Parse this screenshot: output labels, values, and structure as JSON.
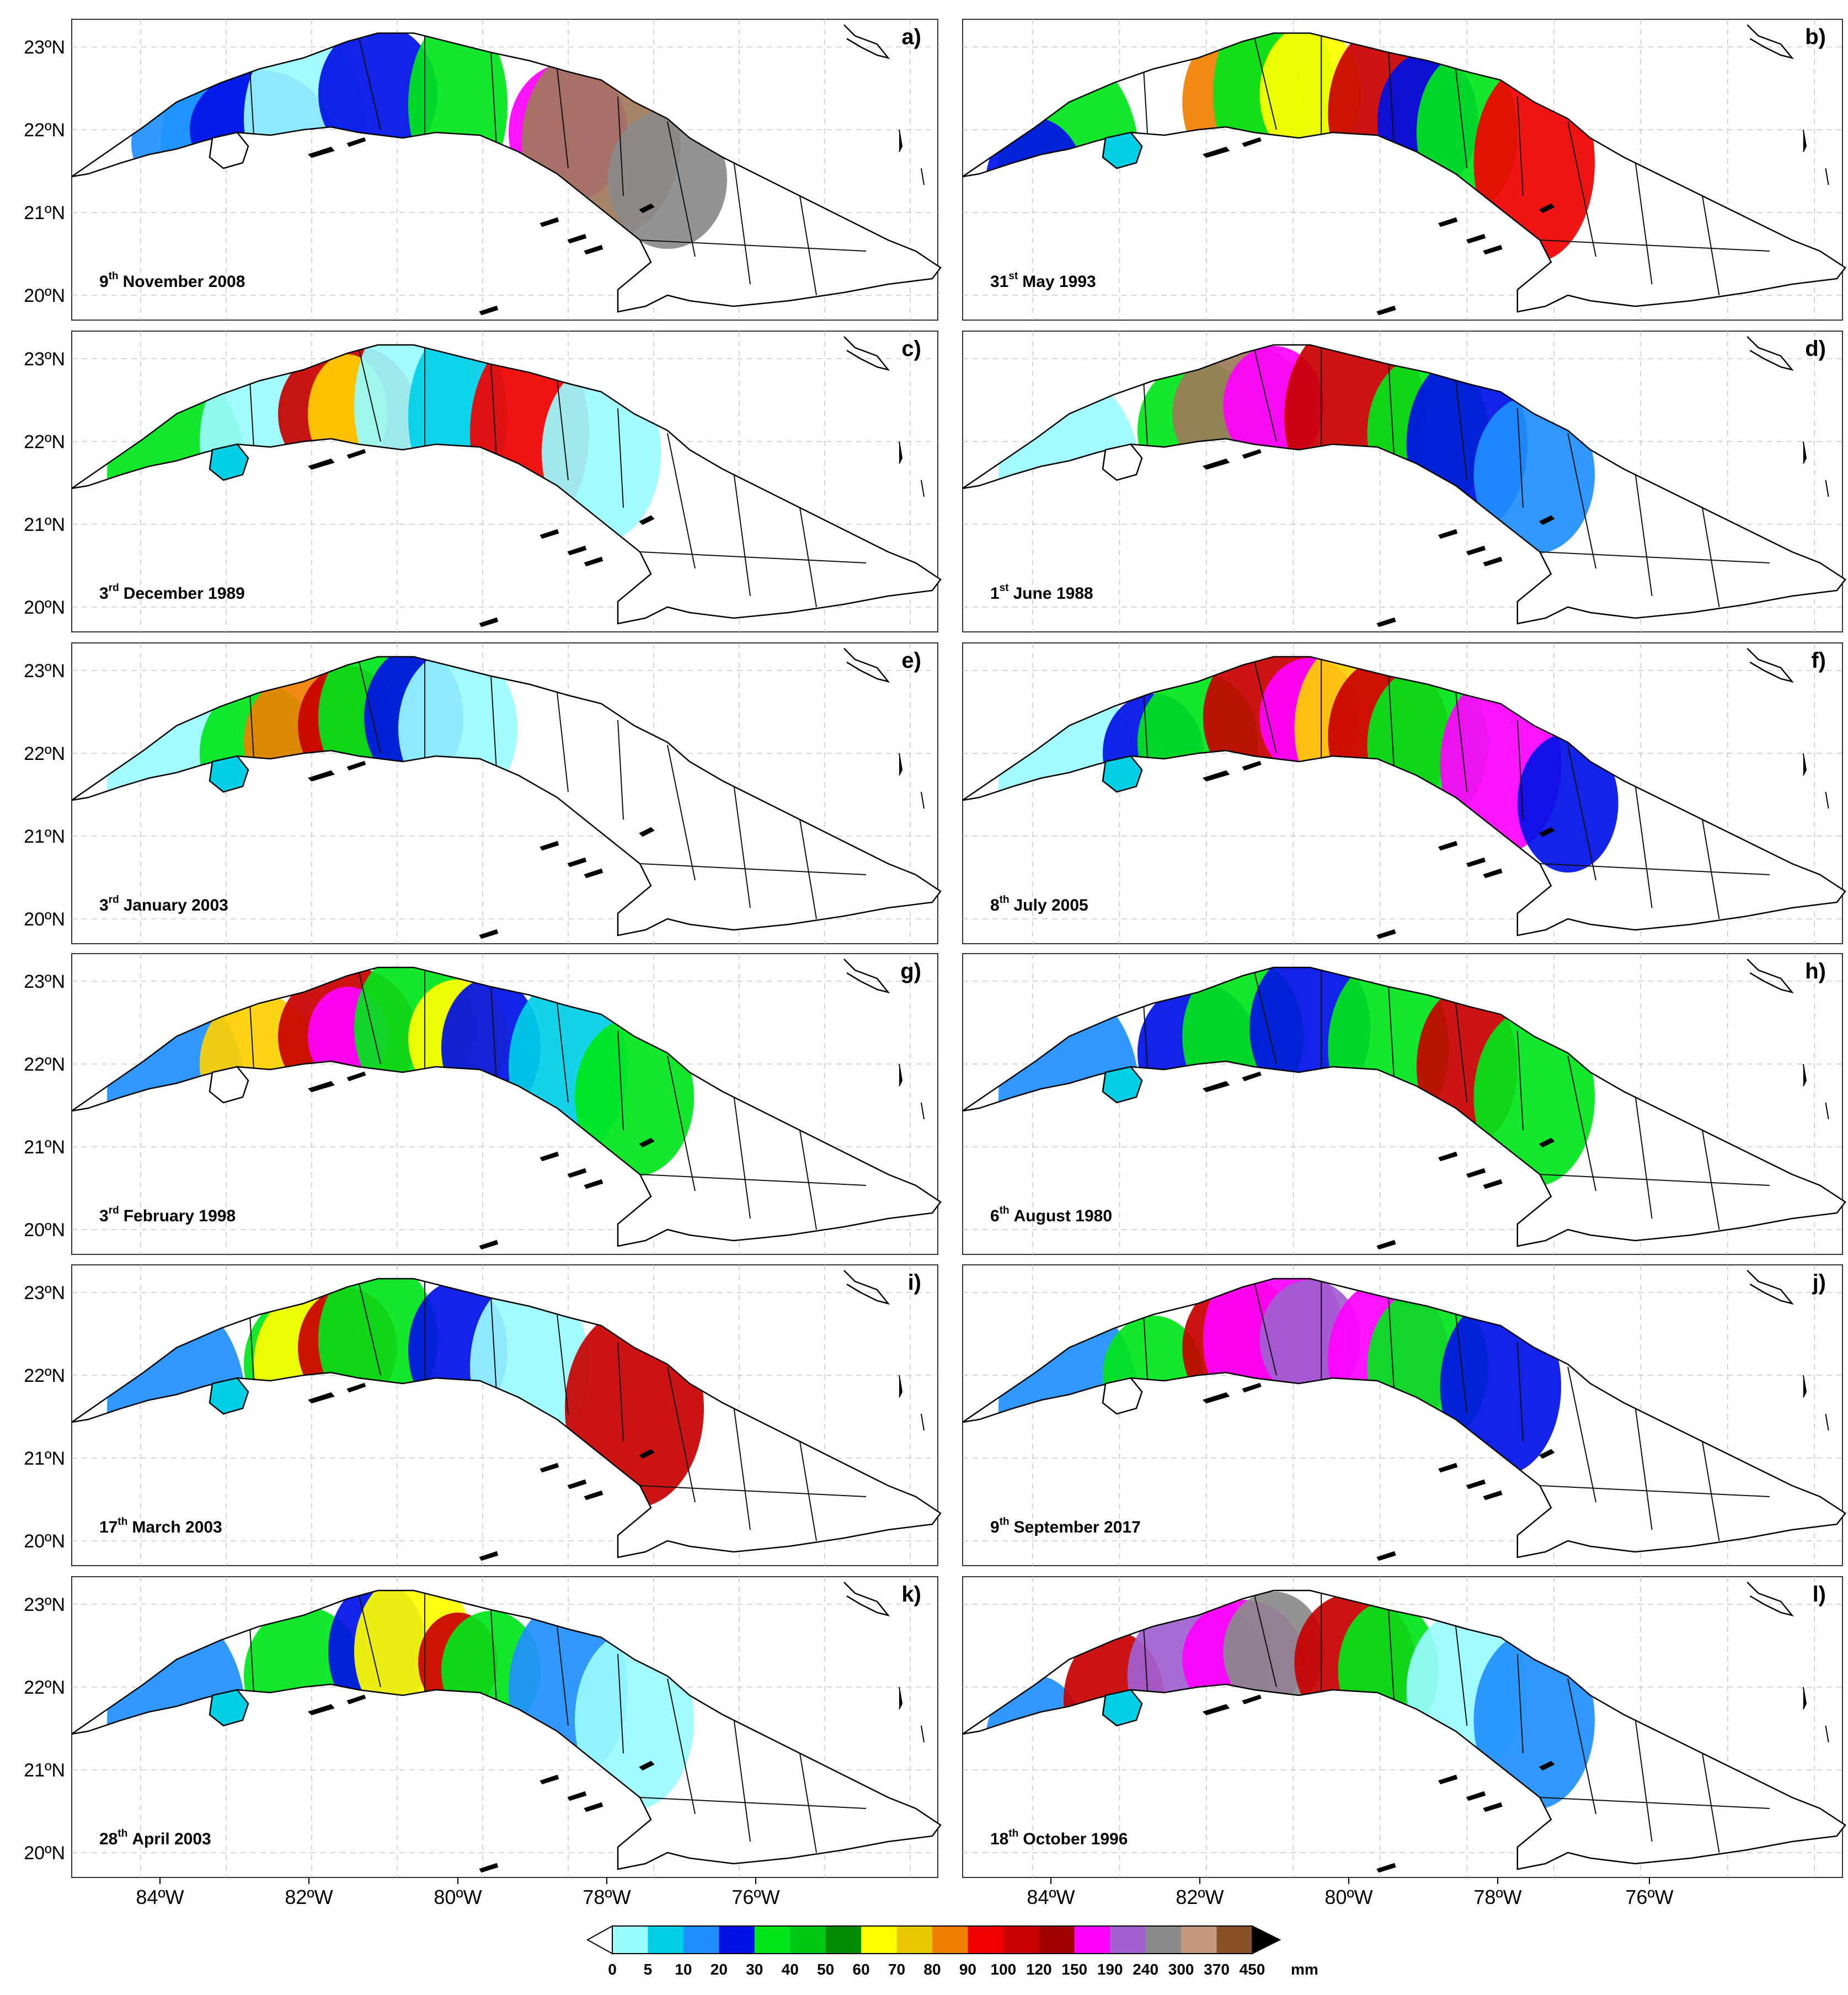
{
  "lat_labels": [
    "23ºN",
    "22ºN",
    "21ºN",
    "20ºN"
  ],
  "lon_labels": [
    "84ºW",
    "82ºW",
    "80ºW",
    "78ºW",
    "76ºW"
  ],
  "panels": [
    {
      "letter": "a)",
      "date_day": "9",
      "date_sup": "th",
      "date_rest": "November 2008",
      "blobs": [
        [
          "#00cfe6",
          5,
          2,
          0.12,
          0.18
        ],
        [
          "#1f8fff",
          4,
          2,
          0.18,
          0.14
        ],
        [
          "#0010e6",
          4,
          3,
          0.14,
          0.12
        ],
        [
          "#99fbff",
          3,
          4,
          0.12,
          0.18
        ],
        [
          "#0010e6",
          4,
          6,
          0.12,
          0.14
        ],
        [
          "#00e61a",
          4,
          8,
          0.1,
          0.18
        ],
        [
          "#ff00ff",
          4,
          11,
          0.12,
          0.14
        ],
        [
          "#a07a5a",
          4,
          12,
          0.16,
          0.2
        ],
        [
          "#8a8a8a",
          4,
          14,
          0.12,
          0.14
        ]
      ]
    },
    {
      "letter": "b)",
      "date_day": "31",
      "date_sup": "st",
      "date_rest": "May 1993",
      "blobs": [
        [
          "#00e61a",
          5,
          1,
          0.14,
          0.22
        ],
        [
          "#0010e6",
          5,
          0,
          0.1,
          0.14
        ],
        [
          "#f08000",
          3,
          5,
          0.12,
          0.16
        ],
        [
          "#00e61a",
          4,
          6,
          0.12,
          0.2
        ],
        [
          "#ffff00",
          4,
          7,
          0.1,
          0.14
        ],
        [
          "#c80000",
          4,
          9,
          0.12,
          0.18
        ],
        [
          "#0010e6",
          4,
          10,
          0.1,
          0.14
        ],
        [
          "#00e61a",
          4,
          11,
          0.1,
          0.16
        ],
        [
          "#f00000",
          4,
          13,
          0.12,
          0.2
        ]
      ]
    },
    {
      "letter": "c)",
      "date_day": "3",
      "date_sup": "rd",
      "date_rest": "December 1989",
      "blobs": [
        [
          "#00e61a",
          5,
          1,
          0.14,
          0.22
        ],
        [
          "#99fbff",
          4,
          3,
          0.12,
          0.18
        ],
        [
          "#c80000",
          5,
          5,
          0.14,
          0.14
        ],
        [
          "#ffd000",
          4,
          5,
          0.08,
          0.12
        ],
        [
          "#99fbff",
          4,
          7,
          0.12,
          0.2
        ],
        [
          "#00cfe6",
          4,
          8,
          0.1,
          0.18
        ],
        [
          "#f00000",
          4,
          10,
          0.12,
          0.2
        ],
        [
          "#99fbff",
          4,
          12,
          0.12,
          0.18
        ]
      ]
    },
    {
      "letter": "d)",
      "date_day": "1",
      "date_sup": "st",
      "date_rest": "June 1988",
      "blobs": [
        [
          "#99fbff",
          4,
          1,
          0.14,
          0.2
        ],
        [
          "#00e61a",
          5,
          4,
          0.12,
          0.14
        ],
        [
          "#a07a5a",
          4,
          5,
          0.14,
          0.14
        ],
        [
          "#ff00ff",
          4,
          6,
          0.1,
          0.12
        ],
        [
          "#c80000",
          4,
          8,
          0.14,
          0.2
        ],
        [
          "#00e61a",
          4,
          10,
          0.12,
          0.16
        ],
        [
          "#0010e6",
          4,
          11,
          0.12,
          0.18
        ],
        [
          "#1f8fff",
          4,
          13,
          0.12,
          0.16
        ]
      ]
    },
    {
      "letter": "e)",
      "date_day": "3",
      "date_sup": "rd",
      "date_rest": "January 2003",
      "blobs": [
        [
          "#99fbff",
          4,
          1,
          0.14,
          0.22
        ],
        [
          "#00e61a",
          5,
          3,
          0.12,
          0.14
        ],
        [
          "#f08000",
          4,
          4,
          0.12,
          0.14
        ],
        [
          "#c80000",
          5,
          5,
          0.1,
          0.12
        ],
        [
          "#00e61a",
          4,
          6,
          0.12,
          0.16
        ],
        [
          "#0010e6",
          4,
          7,
          0.1,
          0.14
        ],
        [
          "#99fbff",
          4,
          8,
          0.12,
          0.16
        ]
      ]
    },
    {
      "letter": "f)",
      "date_day": "8",
      "date_sup": "th",
      "date_rest": "July 2005",
      "blobs": [
        [
          "#99fbff",
          4,
          1,
          0.14,
          0.22
        ],
        [
          "#0010e6",
          5,
          3,
          0.1,
          0.12
        ],
        [
          "#00e61a",
          5,
          4,
          0.12,
          0.14
        ],
        [
          "#c80000",
          4,
          6,
          0.14,
          0.16
        ],
        [
          "#ff00ff",
          4,
          7,
          0.1,
          0.12
        ],
        [
          "#ffd000",
          4,
          8,
          0.12,
          0.18
        ],
        [
          "#c80000",
          4,
          9,
          0.12,
          0.16
        ],
        [
          "#00e61a",
          4,
          10,
          0.12,
          0.16
        ],
        [
          "#ff00ff",
          4,
          12,
          0.12,
          0.18
        ],
        [
          "#0010e6",
          4,
          14,
          0.1,
          0.14
        ]
      ]
    },
    {
      "letter": "g)",
      "date_day": "3",
      "date_sup": "rd",
      "date_rest": "February 1998",
      "blobs": [
        [
          "#1f8fff",
          4,
          1,
          0.14,
          0.22
        ],
        [
          "#ffd000",
          5,
          3,
          0.12,
          0.14
        ],
        [
          "#c80000",
          5,
          5,
          0.14,
          0.14
        ],
        [
          "#ff00ff",
          4,
          5,
          0.08,
          0.1
        ],
        [
          "#00e61a",
          4,
          7,
          0.12,
          0.16
        ],
        [
          "#ffff00",
          4,
          8,
          0.1,
          0.12
        ],
        [
          "#0010e6",
          4,
          9,
          0.1,
          0.14
        ],
        [
          "#00cfe6",
          4,
          11,
          0.12,
          0.18
        ],
        [
          "#00e61a",
          4,
          13,
          0.12,
          0.16
        ]
      ]
    },
    {
      "letter": "h)",
      "date_day": "6",
      "date_sup": "th",
      "date_rest": "August 1980",
      "blobs": [
        [
          "#1f8fff",
          4,
          1,
          0.14,
          0.22
        ],
        [
          "#0010e6",
          5,
          4,
          0.12,
          0.14
        ],
        [
          "#00e61a",
          4,
          5,
          0.12,
          0.16
        ],
        [
          "#0010e6",
          4,
          7,
          0.12,
          0.16
        ],
        [
          "#00e61a",
          4,
          9,
          0.12,
          0.18
        ],
        [
          "#c80000",
          4,
          11,
          0.1,
          0.16
        ],
        [
          "#00e61a",
          4,
          13,
          0.12,
          0.18
        ]
      ]
    },
    {
      "letter": "i)",
      "date_day": "17",
      "date_sup": "th",
      "date_rest": "March 2003",
      "blobs": [
        [
          "#1f8fff",
          4,
          1,
          0.14,
          0.22
        ],
        [
          "#00e61a",
          5,
          4,
          0.12,
          0.14
        ],
        [
          "#ffff00",
          4,
          4,
          0.1,
          0.14
        ],
        [
          "#c80000",
          4,
          5,
          0.1,
          0.12
        ],
        [
          "#00e61a",
          4,
          6,
          0.12,
          0.16
        ],
        [
          "#0010e6",
          4,
          8,
          0.1,
          0.14
        ],
        [
          "#99fbff",
          4,
          10,
          0.12,
          0.18
        ],
        [
          "#c80000",
          4,
          13,
          0.14,
          0.2
        ]
      ]
    },
    {
      "letter": "j)",
      "date_day": "9",
      "date_sup": "th",
      "date_rest": "September 2017",
      "blobs": [
        [
          "#1f8fff",
          4,
          1,
          0.14,
          0.22
        ],
        [
          "#00e61a",
          5,
          3,
          0.1,
          0.12
        ],
        [
          "#c80000",
          5,
          5,
          0.12,
          0.14
        ],
        [
          "#ff00ff",
          4,
          6,
          0.14,
          0.18
        ],
        [
          "#a060d0",
          4,
          7,
          0.1,
          0.12
        ],
        [
          "#ff00ff",
          4,
          9,
          0.12,
          0.16
        ],
        [
          "#00e61a",
          4,
          10,
          0.12,
          0.16
        ],
        [
          "#0010e6",
          4,
          12,
          0.12,
          0.18
        ]
      ]
    },
    {
      "letter": "k)",
      "date_day": "28",
      "date_sup": "th",
      "date_rest": "April 2003",
      "blobs": [
        [
          "#1f8fff",
          4,
          1,
          0.14,
          0.22
        ],
        [
          "#00e61a",
          5,
          4,
          0.12,
          0.14
        ],
        [
          "#0010e6",
          4,
          6,
          0.1,
          0.14
        ],
        [
          "#ffff00",
          4,
          7,
          0.12,
          0.16
        ],
        [
          "#c80000",
          4,
          8,
          0.08,
          0.1
        ],
        [
          "#00e61a",
          4,
          9,
          0.1,
          0.12
        ],
        [
          "#1f8fff",
          4,
          11,
          0.12,
          0.18
        ],
        [
          "#99fbff",
          4,
          13,
          0.12,
          0.18
        ]
      ]
    },
    {
      "letter": "l)",
      "date_day": "18",
      "date_sup": "th",
      "date_rest": "October 1996",
      "blobs": [
        [
          "#1f8fff",
          4,
          0,
          0.1,
          0.14
        ],
        [
          "#c80000",
          5,
          2,
          0.1,
          0.14
        ],
        [
          "#a060d0",
          5,
          4,
          0.14,
          0.16
        ],
        [
          "#ff00ff",
          5,
          5,
          0.12,
          0.12
        ],
        [
          "#8a8a8a",
          4,
          6,
          0.1,
          0.12
        ],
        [
          "#c80000",
          4,
          8,
          0.12,
          0.14
        ],
        [
          "#00e61a",
          4,
          9,
          0.1,
          0.14
        ],
        [
          "#99fbff",
          4,
          11,
          0.12,
          0.16
        ],
        [
          "#1f8fff",
          4,
          13,
          0.12,
          0.18
        ]
      ]
    }
  ],
  "colorbar": {
    "ticks": [
      "0",
      "5",
      "10",
      "20",
      "30",
      "40",
      "50",
      "60",
      "70",
      "80",
      "90",
      "100",
      "120",
      "150",
      "190",
      "240",
      "300",
      "370",
      "450"
    ],
    "colors": [
      "#99fbff",
      "#00cfe6",
      "#1f8fff",
      "#0010e6",
      "#00e61a",
      "#00c814",
      "#008c00",
      "#ffff00",
      "#e6c800",
      "#f08000",
      "#f00000",
      "#c80000",
      "#a00000",
      "#ff00ff",
      "#a060d0",
      "#8a8a8a",
      "#c09a7a",
      "#8a5028"
    ],
    "over_color": "#000000",
    "unit": "mm"
  }
}
